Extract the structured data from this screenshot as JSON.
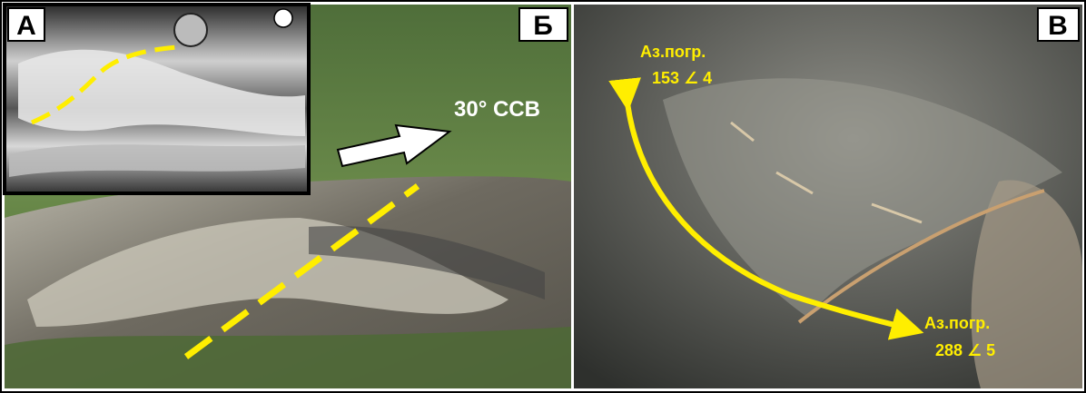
{
  "panels": [
    {
      "label": "А"
    },
    {
      "label": "Б",
      "annotation": "30° ССВ"
    },
    {
      "label": "В",
      "annotations": [
        {
          "title": "Аз.погр.",
          "value": "153 ∠ 4"
        },
        {
          "title": "Аз.погр.",
          "value": "288 ∠ 5"
        }
      ]
    }
  ]
}
